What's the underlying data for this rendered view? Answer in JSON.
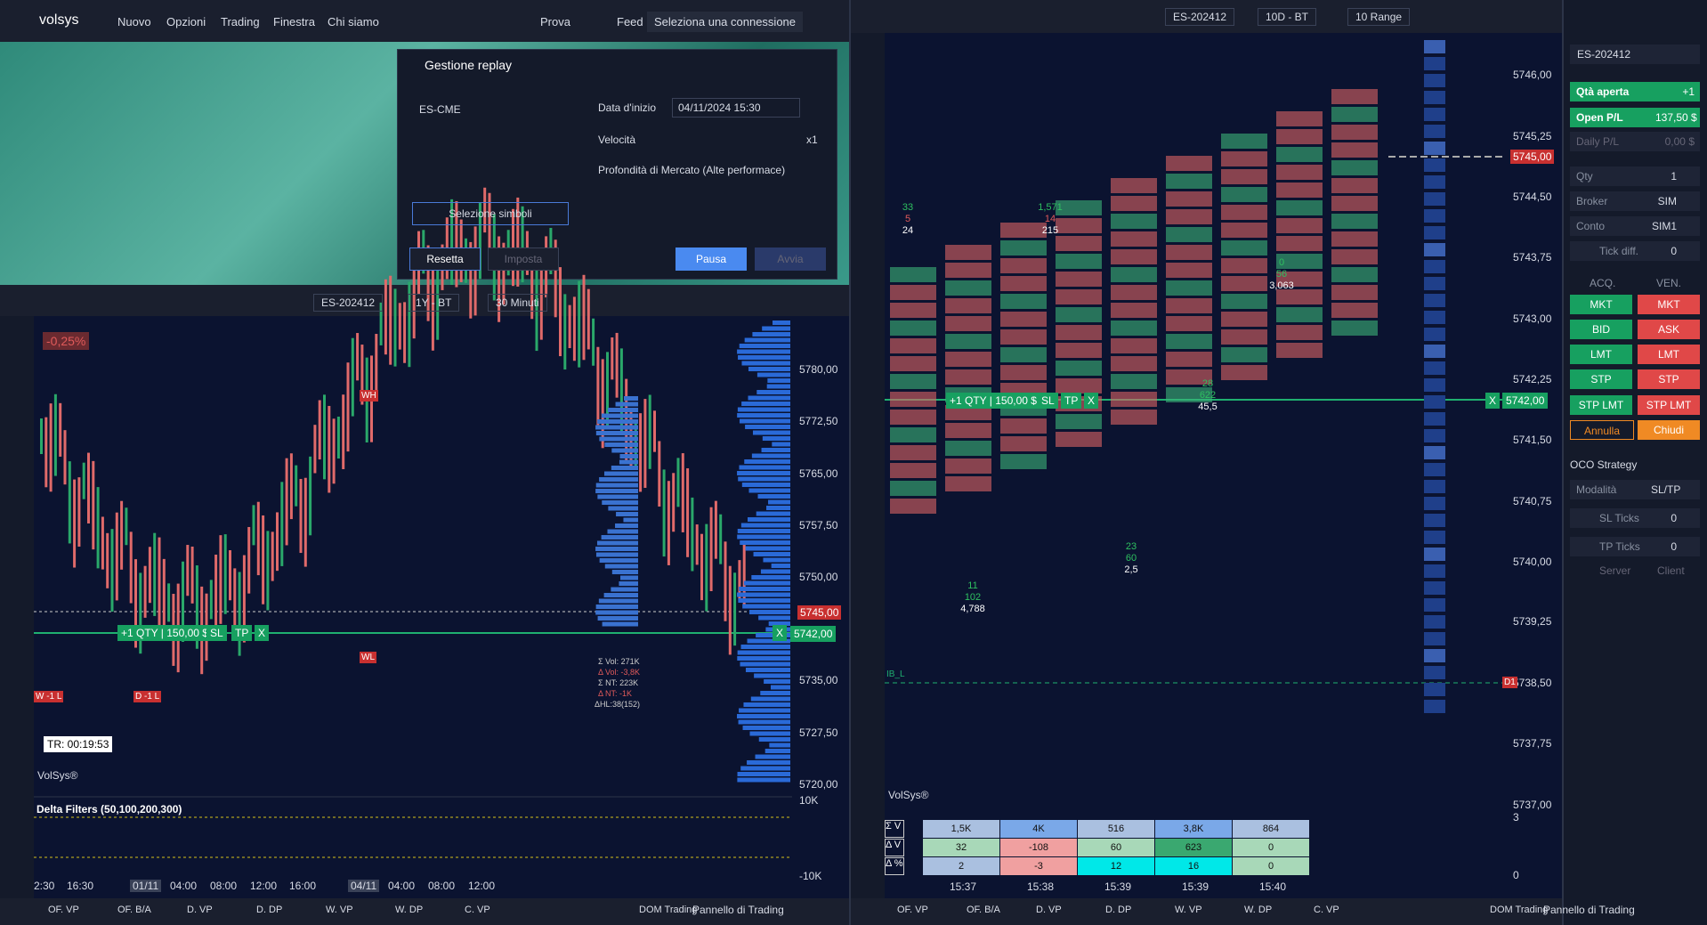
{
  "menu": {
    "brand": "volsys",
    "items": [
      "Nuovo",
      "Opzioni",
      "Trading",
      "Finestra",
      "Chi siamo"
    ],
    "prova": "Prova",
    "feed": "Feed",
    "connection": "Seleziona una connessione"
  },
  "replay": {
    "title": "Gestione replay",
    "symbol": "ES-CME",
    "start_label": "Data d'inizio",
    "start_value": "04/11/2024 15:30",
    "speed_label": "Velocità",
    "speed_value": "x1",
    "depth_label": "Profondità di Mercato (Alte performace)",
    "select_button": "Selezione simboli",
    "buttons": [
      "Resetta",
      "Imposta",
      "Pausa",
      "Avvia"
    ]
  },
  "left_chart": {
    "symbol": "ES-202412",
    "period": "1Y - BT",
    "interval": "30 Minuti",
    "change": "-0,25%",
    "price_labels": [
      "5780,00",
      "5772,50",
      "5765,00",
      "5757,50",
      "5750,00",
      "5735,00",
      "5727,50",
      "5720,00"
    ],
    "last_price": "5745,00",
    "current_price": "5742,00",
    "order": "+1 QTY | 150,00 $",
    "order_buttons": [
      "SL",
      "TP",
      "X"
    ],
    "close": "X",
    "timer": "TR: 00:19:53",
    "watermark": "VolSys®",
    "tags": [
      "WH",
      "WL",
      "W -1 L",
      "D -1 L"
    ],
    "stats": [
      "Σ Vol: 271K",
      "Δ Vol: -3,8K",
      "Σ NT: 223K",
      "Δ NT: -1K",
      "ΔHL:38(152)"
    ],
    "indicator": "Delta Filters (50,100,200,300)",
    "indicator_ticks": [
      "10K",
      "-10K"
    ],
    "time_labels": [
      "2:30",
      "16:30",
      "01/11",
      "04:00",
      "08:00",
      "12:00",
      "16:00",
      "04/11",
      "04:00",
      "08:00",
      "12:00"
    ]
  },
  "right_chart": {
    "symbol": "ES-202412",
    "period": "10D - BT",
    "interval": "10 Range",
    "price_labels": [
      "5746,00",
      "5745,25",
      "5744,50",
      "5743,75",
      "5743,00",
      "5742,25",
      "5741,50",
      "5740,75",
      "5740,00",
      "5739,25",
      "5738,50",
      "5737,75",
      "5737,00",
      "3",
      "0"
    ],
    "last_price": "5745,00",
    "current_price": "5742,00",
    "order": "+1 QTY | 150,00 $",
    "order_buttons": [
      "SL",
      "TP",
      "X"
    ],
    "close": "X",
    "tags": [
      "IB_L",
      "D1"
    ],
    "watermark": "VolSys®",
    "annotations": [
      [
        "33",
        "5",
        "24"
      ],
      [
        "1,571",
        "14",
        "215"
      ],
      [
        "0",
        "56",
        "3,063"
      ],
      [
        "28",
        "622",
        "45,5"
      ],
      [
        "23",
        "60",
        "2,5"
      ],
      [
        "11",
        "102",
        "4,788"
      ]
    ],
    "table": {
      "row_labels": [
        "Σ V",
        "Δ V",
        "Δ %"
      ],
      "rows": [
        [
          "1,5K",
          "4K",
          "516",
          "3,8K",
          "864"
        ],
        [
          "32",
          "-108",
          "60",
          "623",
          "0"
        ],
        [
          "2",
          "-3",
          "12",
          "16",
          "0"
        ]
      ],
      "times": [
        "15:37",
        "15:38",
        "15:39",
        "15:39",
        "15:40"
      ]
    }
  },
  "bottom_options": [
    "OF. VP",
    "OF. B/A",
    "D. VP",
    "D. DP",
    "W. VP",
    "W. DP",
    "C. VP"
  ],
  "dom_trading": "DOM Trading",
  "trading_panel": "Pannello di Trading",
  "order_panel": {
    "symbol": "ES-202412",
    "open_qty": [
      "Qtà aperta",
      "+1"
    ],
    "open_pl": [
      "Open P/L",
      "137,50 $"
    ],
    "daily_pl": [
      "Daily P/L",
      "0,00 $"
    ],
    "fields": [
      [
        "Qty",
        "1"
      ],
      [
        "Broker",
        "SIM"
      ],
      [
        "Conto",
        "SIM1"
      ],
      [
        "Tick diff.",
        "0"
      ]
    ],
    "buy": "ACQ.",
    "sell": "VEN.",
    "buttons": [
      [
        "MKT",
        "MKT"
      ],
      [
        "BID",
        "ASK"
      ],
      [
        "LMT",
        "LMT"
      ],
      [
        "STP",
        "STP"
      ],
      [
        "STP LMT",
        "STP LMT"
      ],
      [
        "Annulla",
        "Chiudi"
      ]
    ],
    "oco": "OCO Strategy",
    "mode": [
      "Modalità",
      "SL/TP"
    ],
    "ticks": [
      [
        "SL Ticks",
        "0"
      ],
      [
        "TP Ticks",
        "0"
      ]
    ],
    "server": "Server",
    "client": "Client"
  }
}
